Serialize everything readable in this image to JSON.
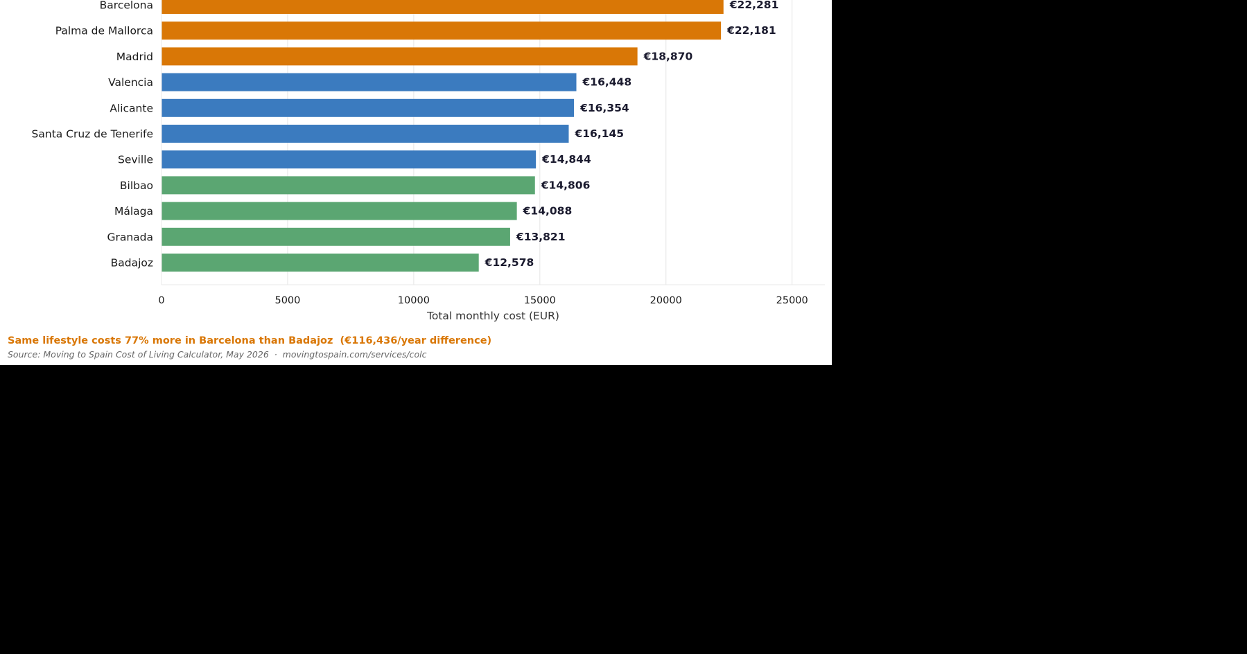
{
  "chart_data": {
    "type": "bar",
    "orientation": "horizontal",
    "categories": [
      "Barcelona",
      "Palma de Mallorca",
      "Madrid",
      "Valencia",
      "Alicante",
      "Santa Cruz de Tenerife",
      "Seville",
      "Bilbao",
      "Málaga",
      "Granada",
      "Badajoz"
    ],
    "values": [
      22281,
      22181,
      18870,
      16448,
      16354,
      16145,
      14844,
      14806,
      14088,
      13821,
      12578
    ],
    "value_labels": [
      "€22,281",
      "€22,181",
      "€18,870",
      "€16,448",
      "€16,354",
      "€16,145",
      "€14,844",
      "€14,806",
      "€14,088",
      "€13,821",
      "€12,578"
    ],
    "bar_colors": [
      "#d97706",
      "#d97706",
      "#d97706",
      "#3b7bbf",
      "#3b7bbf",
      "#3b7bbf",
      "#3b7bbf",
      "#5ba672",
      "#5ba672",
      "#5ba672",
      "#5ba672"
    ],
    "xlabel": "Total monthly cost (EUR)",
    "xlim": [
      0,
      26300
    ],
    "xticks": [
      0,
      5000,
      10000,
      15000,
      20000,
      25000
    ],
    "xtick_labels": [
      "0",
      "5000",
      "10000",
      "15000",
      "20000",
      "25000"
    ],
    "grid": "vertical"
  },
  "footer": {
    "headline": "Same lifestyle costs 77% more in Barcelona than Badajoz  (€116,436/year difference)",
    "headline_color": "#d97706",
    "source": "Source: Moving to Spain Cost of Living Calculator, May 2026  ·  movingtospain.com/services/colc"
  }
}
